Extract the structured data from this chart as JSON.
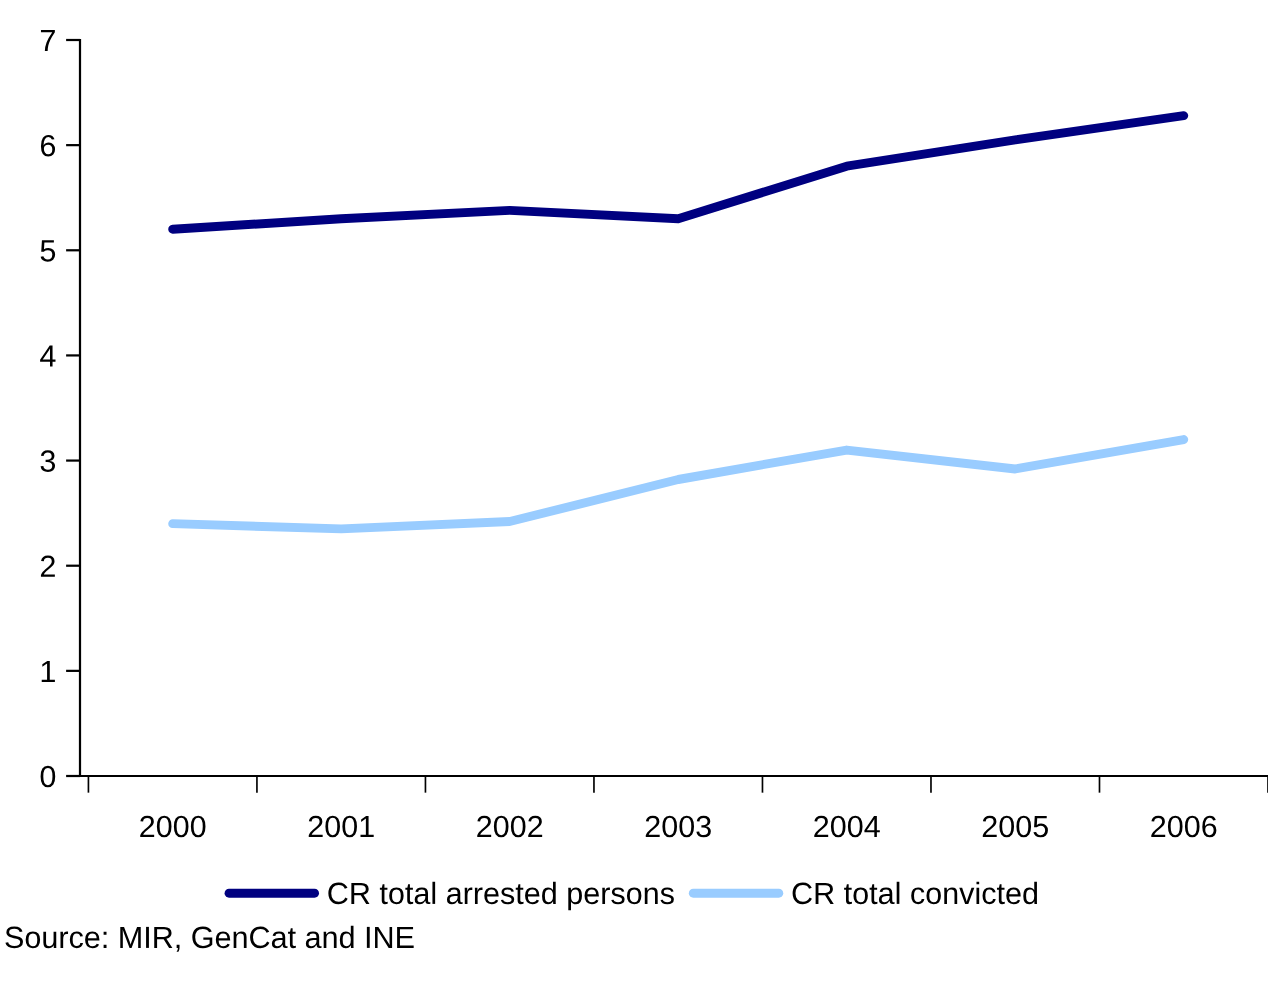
{
  "chart_data": {
    "type": "line",
    "categories": [
      "2000",
      "2001",
      "2002",
      "2003",
      "2004",
      "2005",
      "2006"
    ],
    "series": [
      {
        "name": "CR total arrested persons",
        "color": "#000080",
        "values": [
          5.2,
          5.3,
          5.38,
          5.3,
          5.8,
          6.05,
          6.28
        ]
      },
      {
        "name": "CR total convicted",
        "color": "#99ccff",
        "values": [
          2.4,
          2.35,
          2.42,
          2.82,
          3.1,
          2.92,
          3.2
        ]
      }
    ],
    "ylim": [
      0,
      7
    ],
    "yticks": [
      0,
      1,
      2,
      3,
      4,
      5,
      6,
      7
    ],
    "grid": false,
    "legend": "bottom",
    "marker": "none",
    "line_style": "solid",
    "annotations": [
      "Source: MIR, GenCat and INE"
    ]
  }
}
